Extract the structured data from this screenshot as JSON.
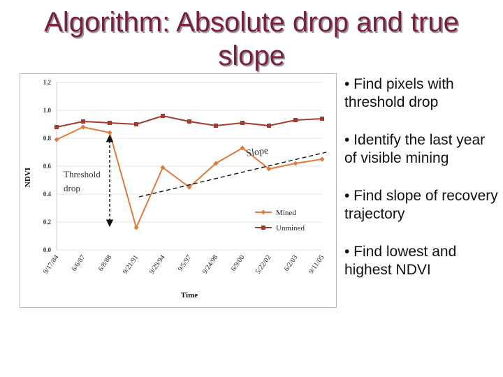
{
  "title": {
    "line1": "Algorithm: Absolute drop and true",
    "line2": "slope"
  },
  "bullets": [
    "• Find pixels with threshold drop",
    "• Identify the last year of visible mining",
    "• Find slope of recovery trajectory",
    "• Find lowest and highest NDVI"
  ],
  "colors": {
    "title": "#7a1f3d",
    "mined": "#e07b3c",
    "unmined": "#a33a2e"
  },
  "chart_data": {
    "type": "line",
    "title": "",
    "xlabel": "Time",
    "ylabel": "NDVI",
    "ylim": [
      0,
      1.2
    ],
    "yticks": [
      "0.0",
      "0.2",
      "0.4",
      "0.6",
      "0.8",
      "1.0",
      "1.2"
    ],
    "categories": [
      "9/17/84",
      "6/6/87",
      "6/8/88",
      "9/21/91",
      "9/29/94",
      "9/5/97",
      "9/24/98",
      "6/9/00",
      "5/22/02",
      "6/2/03",
      "9/11/05"
    ],
    "series": [
      {
        "name": "Mined",
        "color": "#e07b3c",
        "values": [
          0.79,
          0.88,
          0.84,
          0.16,
          0.59,
          0.45,
          0.62,
          0.73,
          0.58,
          0.62,
          0.65
        ]
      },
      {
        "name": "Unmined",
        "color": "#a33a2e",
        "values": [
          0.88,
          0.92,
          0.91,
          0.9,
          0.96,
          0.92,
          0.89,
          0.91,
          0.89,
          0.93,
          0.94
        ]
      }
    ],
    "legend": "bottom-right",
    "annotations": {
      "threshold_label_1": "Threshold",
      "threshold_label_2": "drop",
      "slope_label": "Slope"
    }
  }
}
